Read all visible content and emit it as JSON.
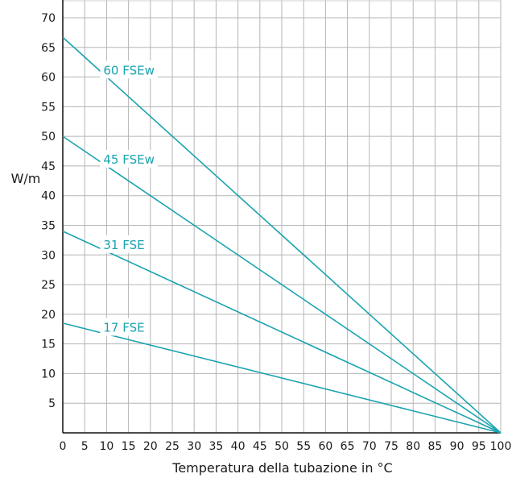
{
  "chart_data": {
    "type": "line",
    "xlabel": "Temperatura della tubazione in °C",
    "ylabel": "W/m",
    "xlim": [
      0,
      100
    ],
    "ylim": [
      0,
      70
    ],
    "x_ticks": [
      "0",
      "5",
      "10",
      "15",
      "20",
      "25",
      "30",
      "35",
      "40",
      "45",
      "50",
      "55",
      "60",
      "65",
      "70",
      "75",
      "80",
      "85",
      "90",
      "95",
      "100"
    ],
    "y_ticks": [
      "5",
      "10",
      "15",
      "20",
      "25",
      "30",
      "35",
      "40",
      "45",
      "50",
      "55",
      "60",
      "65",
      "70"
    ],
    "grid": true,
    "series_color": "#1aa3b0",
    "series": [
      {
        "name": "60 FSEw",
        "points": [
          [
            0,
            66.7
          ],
          [
            100,
            0
          ]
        ]
      },
      {
        "name": "45 FSEw",
        "points": [
          [
            0,
            50.0
          ],
          [
            100,
            0
          ]
        ]
      },
      {
        "name": "31 FSE",
        "points": [
          [
            0,
            34.0
          ],
          [
            100,
            0
          ]
        ]
      },
      {
        "name": "17 FSE",
        "points": [
          [
            0,
            18.5
          ],
          [
            100,
            0
          ]
        ]
      }
    ]
  }
}
